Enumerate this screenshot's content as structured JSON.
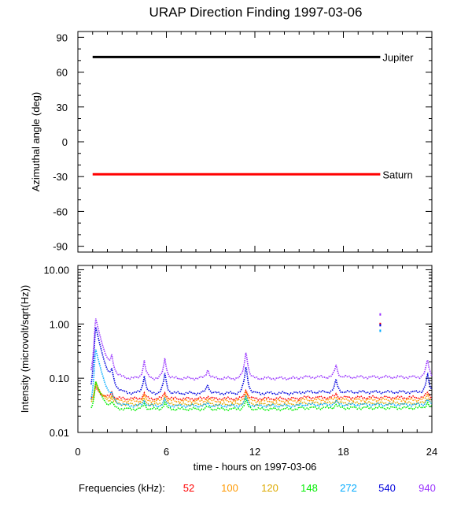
{
  "title": "URAP Direction Finding  1997-03-06",
  "chart_data": [
    {
      "type": "line",
      "panel": "top",
      "ylabel": "Azimuthal angle (deg)",
      "ylim": [
        -95,
        95
      ],
      "yticks": [
        "90",
        "60",
        "30",
        "0",
        "-30",
        "-60",
        "-90"
      ],
      "ytick_values": [
        90,
        60,
        30,
        0,
        -30,
        -60,
        -90
      ],
      "xlim": [
        0,
        24
      ],
      "series": [
        {
          "name": "Jupiter",
          "color": "#000000",
          "x": [
            1,
            20.5
          ],
          "values": [
            73,
            73
          ]
        },
        {
          "name": "Saturn",
          "color": "#ff0000",
          "x": [
            1,
            20.5
          ],
          "values": [
            -28,
            -28
          ]
        }
      ]
    },
    {
      "type": "scatter",
      "panel": "bottom",
      "ylabel": "Intensity (microvolt/sqrt(Hz))",
      "yscale": "log",
      "ylim": [
        0.01,
        12
      ],
      "yticks": [
        "10.00",
        "1.00",
        "0.10",
        "0.01"
      ],
      "ytick_values": [
        10,
        1,
        0.1,
        0.01
      ],
      "xlim": [
        0,
        24
      ],
      "xticks": [
        "0",
        "6",
        "12",
        "18",
        "24"
      ],
      "xtick_values": [
        0,
        6,
        12,
        18,
        24
      ],
      "xlabel": "time - hours on 1997-03-06",
      "legend_prefix": "Frequencies (kHz):",
      "series": [
        {
          "name": "52",
          "color": "#ff0000",
          "base": 0.042,
          "peak": 0.07
        },
        {
          "name": "100",
          "color": "#ff9900",
          "base": 0.038,
          "peak": 0.08
        },
        {
          "name": "120",
          "color": "#ddaa00",
          "base": 0.033,
          "peak": 0.09
        },
        {
          "name": "148",
          "color": "#00ee00",
          "base": 0.027,
          "peak": 0.09
        },
        {
          "name": "272",
          "color": "#00aaff",
          "base": 0.031,
          "peak": 0.35
        },
        {
          "name": "540",
          "color": "#0000dd",
          "base": 0.053,
          "peak": 0.9
        },
        {
          "name": "940",
          "color": "#9933ff",
          "base": 0.1,
          "peak": 1.3
        }
      ]
    }
  ]
}
